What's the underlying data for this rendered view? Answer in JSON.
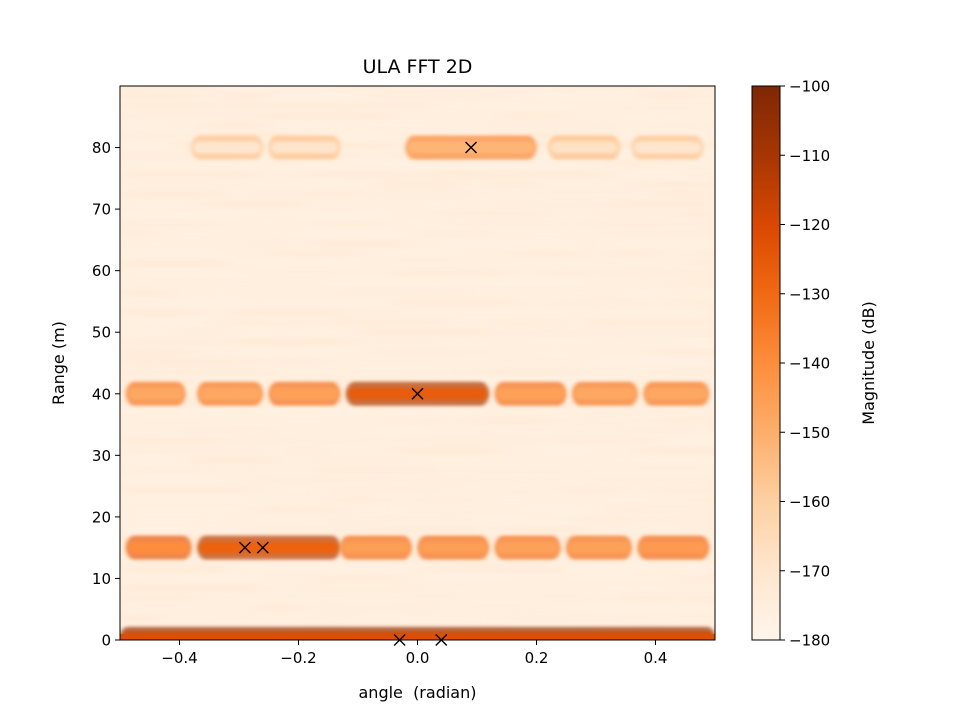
{
  "chart_data": {
    "type": "heatmap",
    "title": "ULA FFT 2D",
    "xlabel": "angle  (radian)",
    "ylabel": "Range (m)",
    "xlim": [
      -0.5,
      0.5
    ],
    "ylim": [
      0,
      90
    ],
    "xticks": [
      -0.4,
      -0.2,
      0.0,
      0.2,
      0.4
    ],
    "xtick_labels": [
      "−0.4",
      "−0.2",
      "0.0",
      "0.2",
      "0.4"
    ],
    "yticks": [
      0,
      10,
      20,
      30,
      40,
      50,
      60,
      70,
      80
    ],
    "ytick_labels": [
      "0",
      "10",
      "20",
      "30",
      "40",
      "50",
      "60",
      "70",
      "80"
    ],
    "colormap": "Oranges",
    "colorbar": {
      "label": "Magnitude (dB)",
      "range": [
        -180,
        -100
      ],
      "ticks": [
        -100,
        -110,
        -120,
        -130,
        -140,
        -150,
        -160,
        -170,
        -180
      ],
      "tick_labels": [
        "−100",
        "−110",
        "−120",
        "−130",
        "−140",
        "−150",
        "−160",
        "−170",
        "−180"
      ]
    },
    "background_db": -176,
    "range_bands": [
      {
        "range_m": 0.5,
        "segments": [
          {
            "angle_from": -0.5,
            "angle_to": 0.5,
            "db": -120
          }
        ]
      },
      {
        "range_m": 15,
        "segments": [
          {
            "angle_from": -0.49,
            "angle_to": -0.38,
            "db": -140
          },
          {
            "angle_from": -0.37,
            "angle_to": -0.13,
            "db": -128
          },
          {
            "angle_from": -0.13,
            "angle_to": -0.01,
            "db": -145
          },
          {
            "angle_from": 0.0,
            "angle_to": 0.12,
            "db": -145
          },
          {
            "angle_from": 0.13,
            "angle_to": 0.24,
            "db": -146
          },
          {
            "angle_from": 0.25,
            "angle_to": 0.36,
            "db": -146
          },
          {
            "angle_from": 0.37,
            "angle_to": 0.49,
            "db": -144
          }
        ]
      },
      {
        "range_m": 40,
        "segments": [
          {
            "angle_from": -0.49,
            "angle_to": -0.39,
            "db": -148
          },
          {
            "angle_from": -0.37,
            "angle_to": -0.26,
            "db": -148
          },
          {
            "angle_from": -0.25,
            "angle_to": -0.13,
            "db": -146
          },
          {
            "angle_from": -0.12,
            "angle_to": 0.12,
            "db": -126
          },
          {
            "angle_from": 0.13,
            "angle_to": 0.25,
            "db": -146
          },
          {
            "angle_from": 0.26,
            "angle_to": 0.37,
            "db": -148
          },
          {
            "angle_from": 0.38,
            "angle_to": 0.49,
            "db": -148
          }
        ]
      },
      {
        "range_m": 80,
        "segments": [
          {
            "angle_from": -0.38,
            "angle_to": -0.26,
            "db": -170
          },
          {
            "angle_from": -0.25,
            "angle_to": -0.13,
            "db": -169
          },
          {
            "angle_from": -0.02,
            "angle_to": 0.2,
            "db": -152
          },
          {
            "angle_from": 0.22,
            "angle_to": 0.34,
            "db": -168
          },
          {
            "angle_from": 0.36,
            "angle_to": 0.48,
            "db": -170
          }
        ]
      }
    ],
    "markers": [
      {
        "angle": 0.09,
        "range_m": 80
      },
      {
        "angle": 0.0,
        "range_m": 40
      },
      {
        "angle": -0.29,
        "range_m": 15
      },
      {
        "angle": -0.26,
        "range_m": 15
      },
      {
        "angle": -0.03,
        "range_m": 0
      },
      {
        "angle": 0.04,
        "range_m": 0
      }
    ],
    "marker_symbol": "x",
    "grid": false
  }
}
